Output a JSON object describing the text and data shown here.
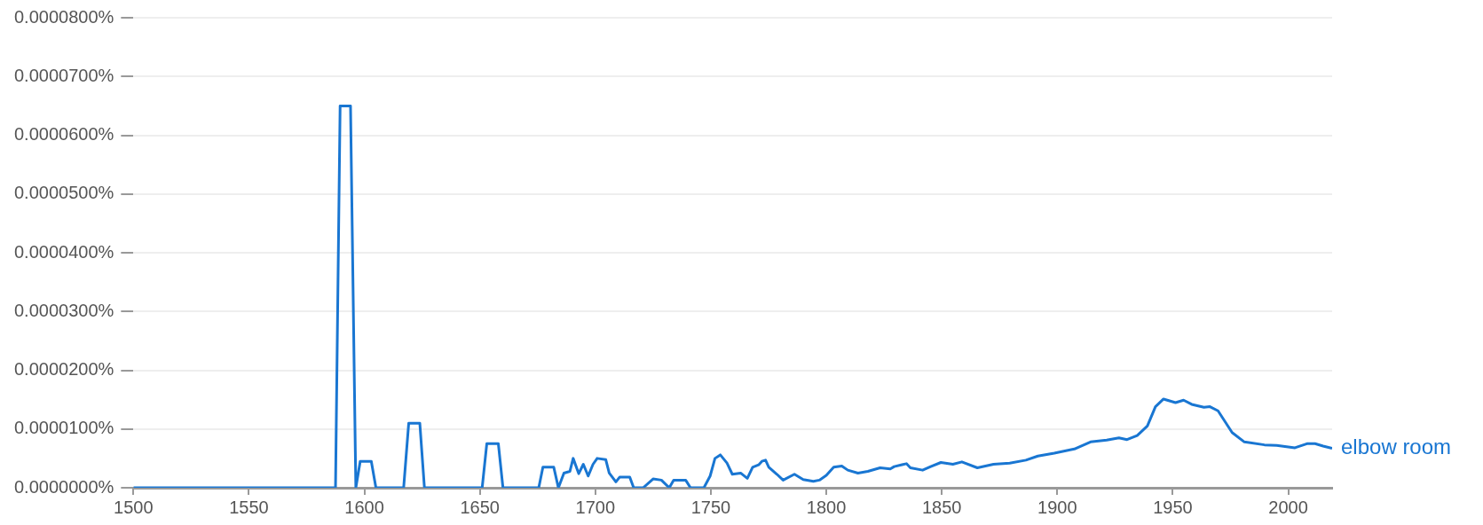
{
  "chart_data": {
    "type": "line",
    "marker": "none",
    "grid": "y",
    "x": [
      1500,
      1587.5,
      1589.5,
      1594,
      1596.3,
      1598.2,
      1603,
      1605,
      1617,
      1619.2,
      1624,
      1626,
      1651,
      1653,
      1658,
      1660,
      1675.5,
      1677.3,
      1682,
      1684,
      1686.4,
      1689,
      1690.4,
      1692.8,
      1694.8,
      1696.9,
      1699,
      1700.8,
      1704.5,
      1706,
      1708.9,
      1710.5,
      1714.9,
      1716.6,
      1720.7,
      1725,
      1728.6,
      1732,
      1733.9,
      1739.1,
      1741.2,
      1747,
      1749.7,
      1751.8,
      1754.1,
      1757,
      1759.3,
      1762.9,
      1765.8,
      1768.1,
      1770.7,
      1772.1,
      1773.7,
      1775.1,
      1778.6,
      1781.3,
      1786.2,
      1790,
      1794.4,
      1797,
      1800,
      1803.2,
      1806.7,
      1809.3,
      1813.7,
      1818,
      1823.3,
      1827.7,
      1829.4,
      1834.7,
      1836.4,
      1841.7,
      1845.2,
      1849.6,
      1854.8,
      1858.7,
      1865.4,
      1872.4,
      1879.4,
      1886.4,
      1891.6,
      1898.7,
      1907.4,
      1914.4,
      1921.4,
      1926.7,
      1930.2,
      1934.6,
      1939,
      1942.5,
      1946,
      1951.2,
      1954.7,
      1958.2,
      1963.5,
      1966.1,
      1969.6,
      1975.7,
      1981,
      1989.7,
      1995,
      2002.9,
      2008.1,
      2011.6,
      2015.1,
      2019
    ],
    "series": [
      {
        "name": "elbow room",
        "color": "#1976d2",
        "values": [
          0,
          0,
          6.5e-05,
          6.5e-05,
          0,
          4.5e-06,
          4.5e-06,
          0,
          0,
          1.1e-05,
          1.1e-05,
          0,
          0,
          7.5e-06,
          7.5e-06,
          0,
          0,
          3.5e-06,
          3.5e-06,
          0,
          2.5e-06,
          2.8e-06,
          5e-06,
          2.4e-06,
          4e-06,
          2e-06,
          4e-06,
          5e-06,
          4.8e-06,
          2.5e-06,
          1e-06,
          1.8e-06,
          1.8e-06,
          0,
          0,
          1.5e-06,
          1.3e-06,
          0,
          1.3e-06,
          1.3e-06,
          0,
          0,
          2e-06,
          5e-06,
          5.6e-06,
          4.2e-06,
          2.3e-06,
          2.5e-06,
          1.6e-06,
          3.5e-06,
          3.9e-06,
          4.5e-06,
          4.7e-06,
          3.5e-06,
          2.3e-06,
          1.3e-06,
          2.3e-06,
          1.4e-06,
          1.1e-06,
          1.3e-06,
          2.1e-06,
          3.5e-06,
          3.7e-06,
          3e-06,
          2.5e-06,
          2.8e-06,
          3.4e-06,
          3.2e-06,
          3.6e-06,
          4.1e-06,
          3.4e-06,
          3e-06,
          3.6e-06,
          4.3e-06,
          4e-06,
          4.4e-06,
          3.4e-06,
          4e-06,
          4.2e-06,
          4.7e-06,
          5.4e-06,
          5.9e-06,
          6.6e-06,
          7.8e-06,
          8.1e-06,
          8.5e-06,
          8.2e-06,
          8.9e-06,
          1.05e-05,
          1.38e-05,
          1.51e-05,
          1.45e-05,
          1.49e-05,
          1.42e-05,
          1.37e-05,
          1.38e-05,
          1.31e-05,
          9.4e-06,
          7.8e-06,
          7.3e-06,
          7.2e-06,
          6.8e-06,
          7.5e-06,
          7.5e-06,
          7.1e-06,
          6.7e-06
        ]
      }
    ],
    "xlim": [
      1500,
      2019
    ],
    "xticks": [
      1500,
      1550,
      1600,
      1650,
      1700,
      1750,
      1800,
      1850,
      1900,
      1950,
      2000
    ],
    "ylim": [
      0,
      8e-05
    ],
    "yticks": [
      {
        "value": 0,
        "label": "0.0000000%"
      },
      {
        "value": 1e-05,
        "label": "0.0000100%"
      },
      {
        "value": 2e-05,
        "label": "0.0000200%"
      },
      {
        "value": 3e-05,
        "label": "0.0000300%"
      },
      {
        "value": 4e-05,
        "label": "0.0000400%"
      },
      {
        "value": 5e-05,
        "label": "0.0000500%"
      },
      {
        "value": 6e-05,
        "label": "0.0000600%"
      },
      {
        "value": 7e-05,
        "label": "0.0000700%"
      },
      {
        "value": 8e-05,
        "label": "0.0000800%"
      }
    ]
  }
}
